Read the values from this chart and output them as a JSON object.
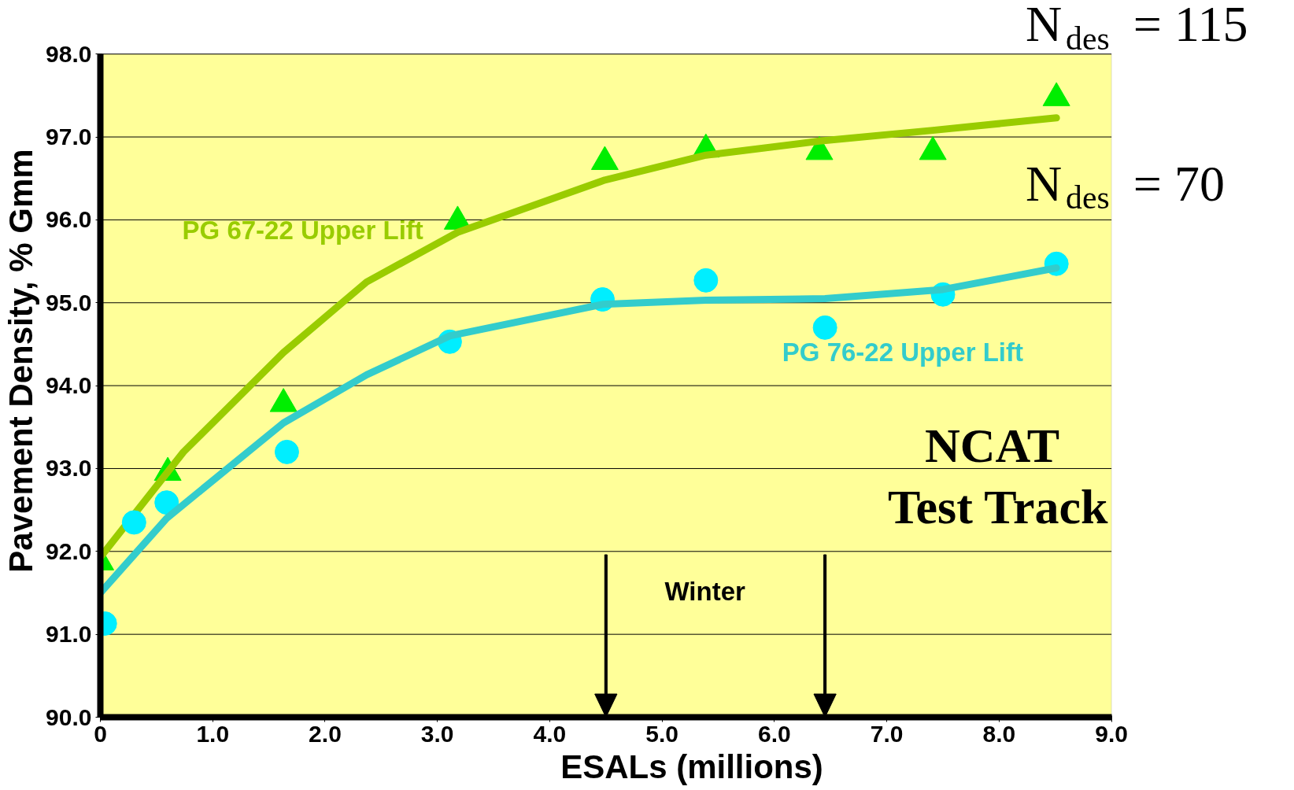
{
  "chart_data": {
    "type": "scatter",
    "xlabel": "ESALs (millions)",
    "ylabel": "Pavement Density, % Gmm",
    "xlim": [
      0,
      9
    ],
    "ylim": [
      90,
      98
    ],
    "xticks": [
      0,
      {
        "value": 1,
        "label": "1.0"
      },
      {
        "value": 2,
        "label": "2.0"
      },
      {
        "value": 3,
        "label": "3.0"
      },
      {
        "value": 4,
        "label": "4.0"
      },
      {
        "value": 5,
        "label": "5.0"
      },
      {
        "value": 6,
        "label": "6.0"
      },
      {
        "value": 7,
        "label": "7.0"
      },
      {
        "value": 8,
        "label": "8.0"
      },
      {
        "value": 9,
        "label": "9.0"
      }
    ],
    "yticks": [
      {
        "value": 90,
        "label": "90.0"
      },
      {
        "value": 91,
        "label": "91.0"
      },
      {
        "value": 92,
        "label": "92.0"
      },
      {
        "value": 93,
        "label": "93.0"
      },
      {
        "value": 94,
        "label": "94.0"
      },
      {
        "value": 95,
        "label": "95.0"
      },
      {
        "value": 96,
        "label": "96.0"
      },
      {
        "value": 97,
        "label": "97.0"
      },
      {
        "value": 98,
        "label": "98.0"
      }
    ],
    "grid": "y",
    "series": [
      {
        "marker": "triangle",
        "color": "#00ee00",
        "x": [
          0,
          0.6,
          1.63,
          3.18,
          4.49,
          5.39,
          6.4,
          7.41,
          8.51
        ],
        "values": [
          91.87,
          92.95,
          93.78,
          95.98,
          96.7,
          96.85,
          96.82,
          96.82,
          97.47
        ]
      },
      {
        "type": "line",
        "name": "PG 67-22 Upper Lift",
        "color": "#99cc00",
        "x": [
          0,
          0.74,
          1.63,
          2.37,
          3.18,
          4.49,
          5.39,
          6.4,
          7.41,
          8.51
        ],
        "values": [
          91.93,
          93.2,
          94.4,
          95.25,
          95.85,
          96.48,
          96.78,
          96.95,
          97.08,
          97.23
        ]
      },
      {
        "marker": "circle",
        "color": "#00eeff",
        "x": [
          0.04,
          0.3,
          0.59,
          1.66,
          3.11,
          4.47,
          5.39,
          6.45,
          7.5,
          8.51
        ],
        "values": [
          91.13,
          92.35,
          92.59,
          93.2,
          94.53,
          95.04,
          95.27,
          94.7,
          95.1,
          95.47
        ]
      },
      {
        "type": "line",
        "name": "PG 76-22 Upper Lift",
        "color": "#33cccc",
        "x": [
          0,
          0.59,
          1.63,
          2.37,
          3.11,
          4.47,
          5.39,
          6.45,
          7.5,
          8.51
        ],
        "values": [
          91.5,
          92.4,
          93.55,
          94.13,
          94.6,
          94.98,
          95.03,
          95.05,
          95.16,
          95.42
        ]
      }
    ],
    "ref_lines": [
      {
        "axis": "x",
        "value": 4.5,
        "label": null
      },
      {
        "axis": "x",
        "value": 6.45,
        "label": null
      }
    ],
    "annotations": [
      "Winter",
      "N$_{des}$ = 115",
      "N$_{des}$ = 70",
      "NCAT",
      "Test Track"
    ]
  }
}
